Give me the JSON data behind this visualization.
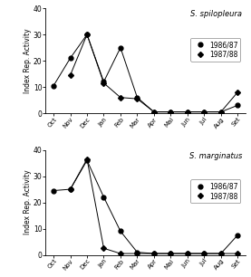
{
  "months": [
    "Oct",
    "Nov",
    "Dec",
    "Jan",
    "Feb",
    "Mar",
    "Apr",
    "Mai",
    "Jun",
    "Jul",
    "Aug",
    "Set"
  ],
  "spilo_1986_x": [
    0,
    1,
    2,
    3,
    4,
    5,
    6,
    7,
    8,
    9,
    10,
    11
  ],
  "spilo_1986_y": [
    10.5,
    21,
    30,
    12,
    25,
    6,
    0.5,
    0.5,
    0.5,
    0.5,
    0.5,
    3
  ],
  "spilo_1987_x": [
    1,
    2,
    3,
    4,
    5,
    6,
    7,
    8,
    9,
    10,
    11
  ],
  "spilo_1987_y": [
    14.5,
    30,
    11.5,
    6,
    5.5,
    0.5,
    0.5,
    0.5,
    0.5,
    0.5,
    8
  ],
  "marg_1986_x": [
    0,
    1,
    2,
    3,
    4,
    5,
    6,
    7,
    8,
    9,
    10,
    11
  ],
  "marg_1986_y": [
    24.5,
    25,
    36,
    22,
    9,
    1,
    0.5,
    0.5,
    0.5,
    0.5,
    0.5,
    7.5
  ],
  "marg_1987_x": [
    1,
    2,
    3,
    4,
    5,
    6,
    7,
    8,
    9,
    10,
    11
  ],
  "marg_1987_y": [
    25,
    36.5,
    2.5,
    0.5,
    0.5,
    0.5,
    0.5,
    0.5,
    0.5,
    0.5,
    0.5
  ],
  "title_spilo": "S. spilopleura",
  "title_marg": "S. marginatus",
  "ylabel": "Index Rep. Activity",
  "ylim": [
    0,
    40
  ],
  "yticks": [
    0,
    10,
    20,
    30,
    40
  ],
  "legend_1986": "1986/87",
  "legend_1987": "1987/88",
  "color": "black"
}
